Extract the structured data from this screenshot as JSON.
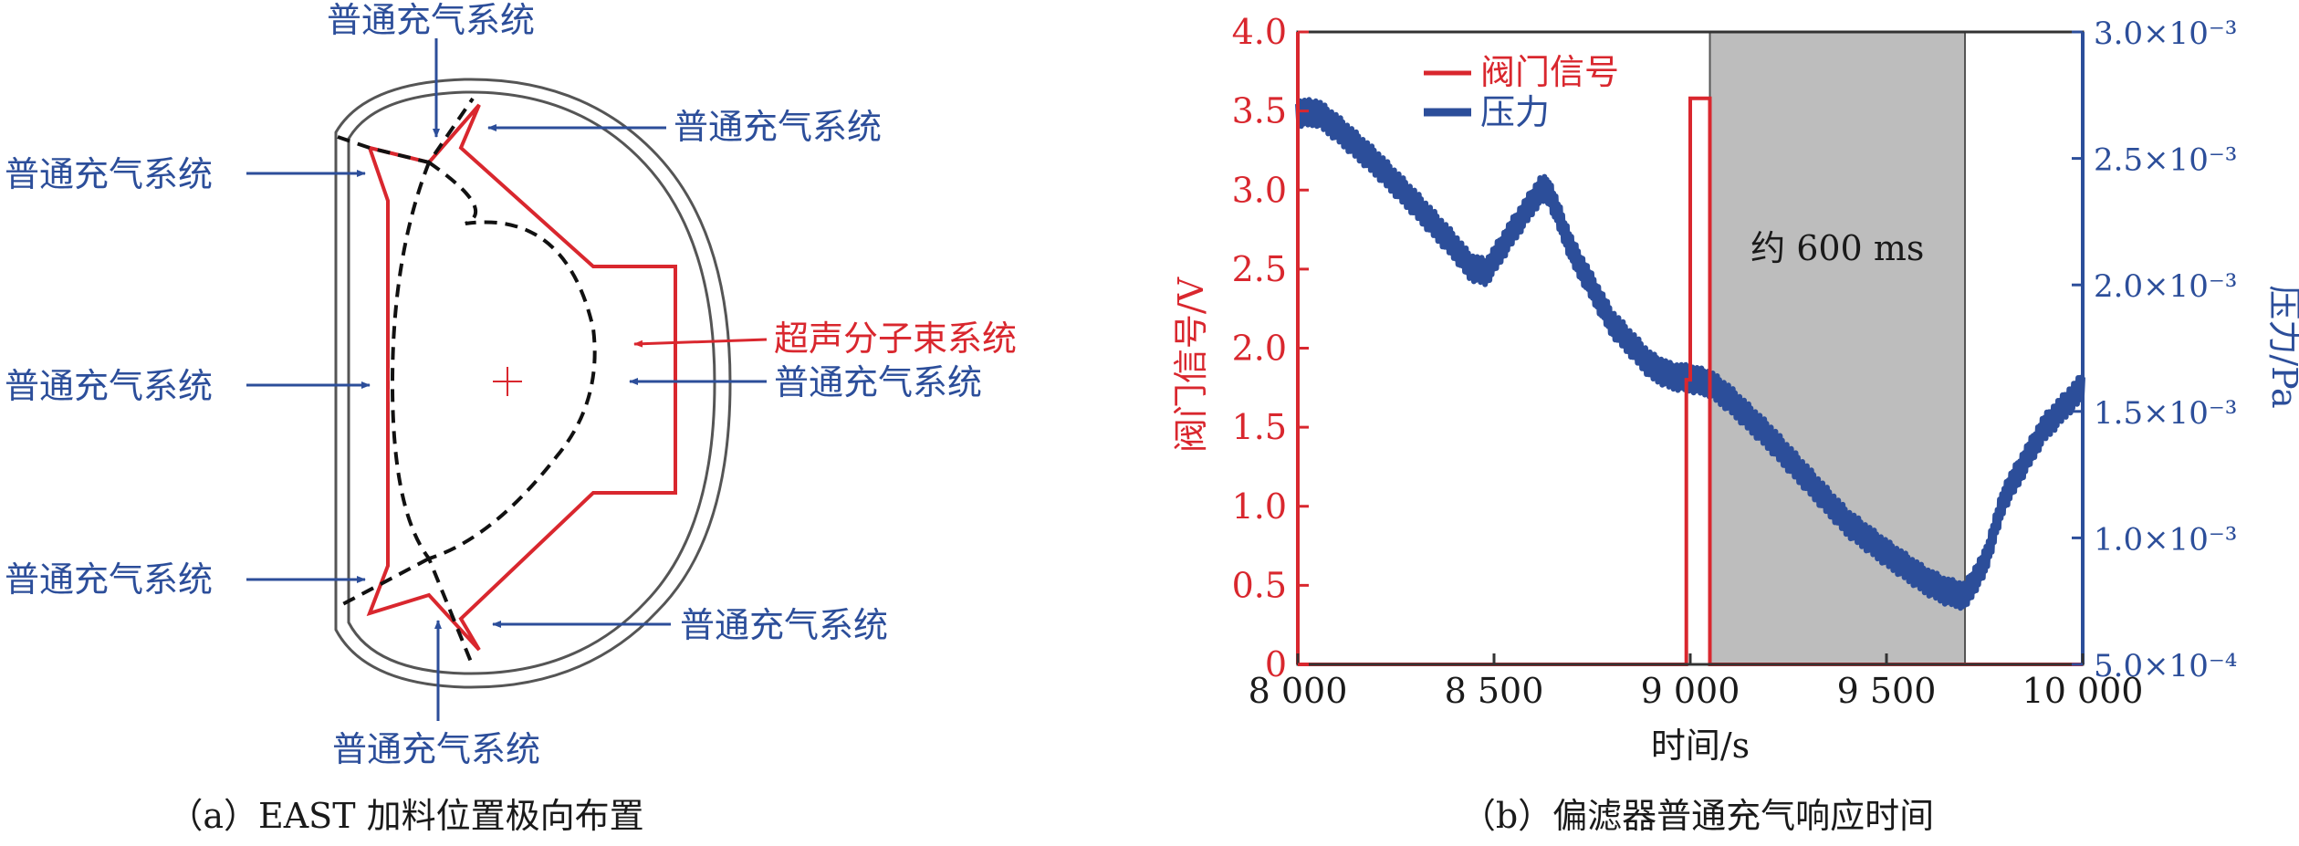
{
  "panel_a": {
    "labels": {
      "top": "普通充气系统",
      "upper_right": "普通充气系统",
      "upper_left": "普通充气系统",
      "mid_left": "普通充气系统",
      "lower_left": "普通充气系统",
      "lower_right": "普通充气系统",
      "bottom": "普通充气系统",
      "smbi": "超声分子束系统",
      "mid_right": "普通充气系统"
    },
    "caption": "（a）EAST 加料位置极向布置"
  },
  "panel_b": {
    "caption": "（b）偏滤器普通充气响应时间",
    "annotation": "约 600 ms"
  },
  "colors": {
    "red": "#d9272e",
    "blue": "#2c4e9a",
    "shade": "#bdbdbd"
  },
  "chart_data": {
    "type": "line",
    "xlabel": "时间/s",
    "ylabel_left": "阀门信号/V",
    "ylabel_right": "压力/Pa",
    "xlim": [
      8000,
      10000
    ],
    "ylim_left": [
      0,
      4.0
    ],
    "ylim_right": [
      0.0005,
      0.003
    ],
    "x_ticks": [
      "8 000",
      "8 500",
      "9 000",
      "9 500",
      "10 000"
    ],
    "y_left_ticks": [
      "0",
      "0.5",
      "1.0",
      "1.5",
      "2.0",
      "2.5",
      "3.0",
      "3.5",
      "4.0"
    ],
    "y_right_ticks": [
      "5.0×10⁻⁴",
      "1.0×10⁻³",
      "1.5×10⁻³",
      "2.0×10⁻³",
      "2.5×10⁻³",
      "3.0×10⁻³"
    ],
    "shaded_region": [
      9050,
      9700
    ],
    "legend": [
      "阀门信号",
      "压力"
    ],
    "legend_position": "top-left",
    "series": [
      {
        "name": "阀门信号",
        "axis": "left",
        "color": "#d9272e",
        "x": [
          8000,
          8990,
          8990,
          9000,
          9000,
          9050,
          9050,
          10000
        ],
        "values": [
          0,
          0,
          1.8,
          1.8,
          3.58,
          3.58,
          0,
          0
        ]
      },
      {
        "name": "压力",
        "axis": "right",
        "color": "#2c4e9a",
        "x": [
          8000,
          8050,
          8100,
          8200,
          8300,
          8400,
          8440,
          8480,
          8550,
          8620,
          8640,
          8700,
          8800,
          8900,
          8950,
          9000,
          9050,
          9100,
          9200,
          9300,
          9400,
          9500,
          9600,
          9650,
          9700,
          9750,
          9800,
          9900,
          10000
        ],
        "values": [
          0.00268,
          0.00268,
          0.00262,
          0.00248,
          0.00232,
          0.00215,
          0.00207,
          0.00205,
          0.00222,
          0.00238,
          0.00237,
          0.00213,
          0.00185,
          0.00168,
          0.00164,
          0.00163,
          0.00161,
          0.00155,
          0.0014,
          0.00123,
          0.00106,
          0.00094,
          0.00083,
          0.00079,
          0.00077,
          0.0009,
          0.00116,
          0.00143,
          0.0016
        ]
      }
    ]
  }
}
